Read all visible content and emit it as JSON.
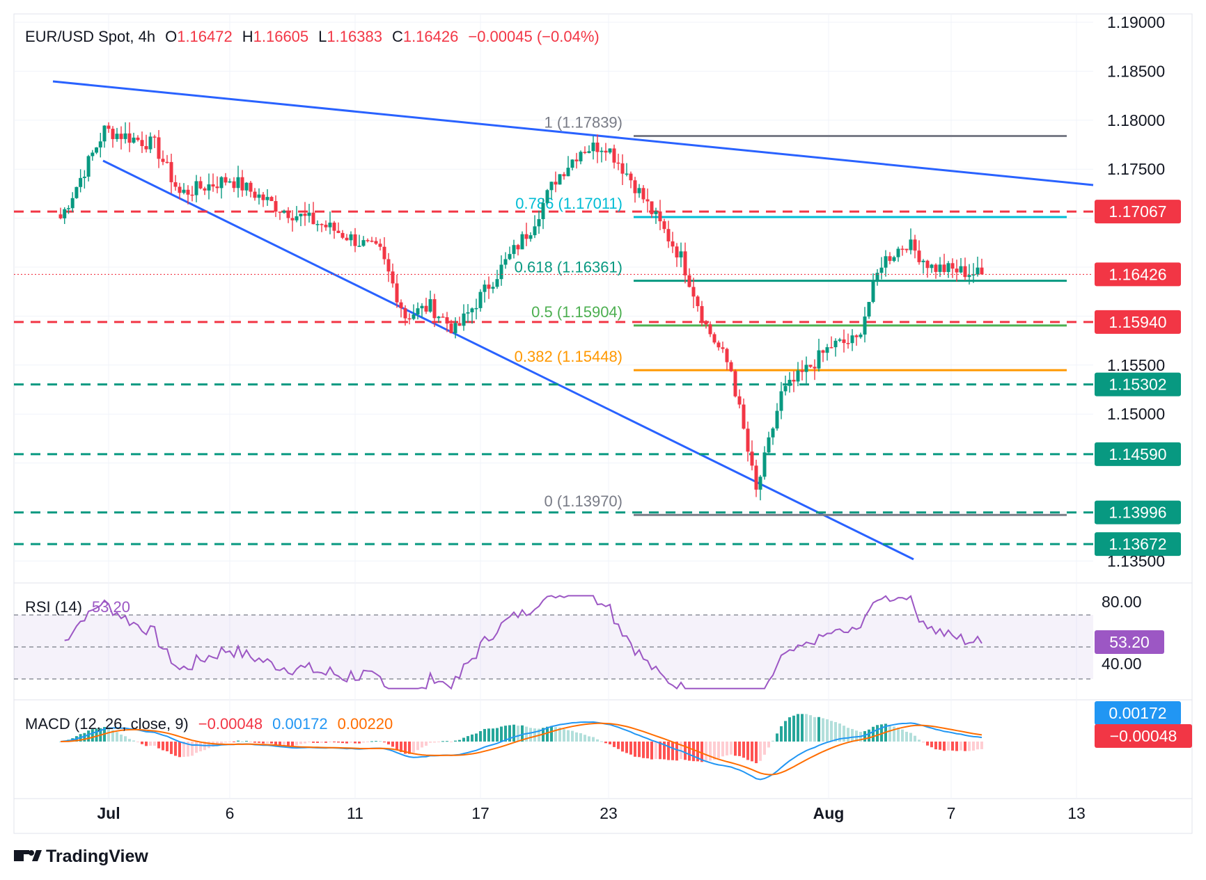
{
  "header": {
    "symbol": "EUR/USD Spot, 4h",
    "o_label": "O",
    "o": "1.16472",
    "h_label": "H",
    "h": "1.16605",
    "l_label": "L",
    "l": "1.16383",
    "c_label": "C",
    "c": "1.16426",
    "change": "−0.00045 (−0.04%)"
  },
  "colors": {
    "up": "#089981",
    "down": "#f23645",
    "trend": "#2962ff",
    "resistance": "#f23645",
    "support": "#089981",
    "rsi": "#9c57c4",
    "macd": "#2196f3",
    "signal": "#ff6d00",
    "fib1": "#787b86",
    "fib786": "#00bcd4",
    "fib618": "#089981",
    "fib5": "#4caf50",
    "fib382": "#ff9800"
  },
  "price_axis": {
    "ticks": [
      "1.19000",
      "1.18500",
      "1.18000",
      "1.17500",
      "1.15500",
      "1.15000",
      "1.13500"
    ],
    "hidden_ticks": [
      "1.17000",
      "1.16500",
      "1.16000",
      "1.14500",
      "1.14000"
    ],
    "ylim": [
      1.133,
      1.191
    ]
  },
  "time_axis": {
    "labels": [
      "Jul",
      "6",
      "11",
      "17",
      "23",
      "Aug",
      "7",
      "13"
    ],
    "bold": [
      "Jul",
      "Aug"
    ]
  },
  "price_badges": [
    {
      "label": "1.17067",
      "kind": "resistance"
    },
    {
      "label": "1.16426",
      "kind": "resistance"
    },
    {
      "label": "1.15940",
      "kind": "resistance"
    },
    {
      "label": "1.15302",
      "kind": "support"
    },
    {
      "label": "1.14590",
      "kind": "support"
    },
    {
      "label": "1.13996",
      "kind": "support"
    },
    {
      "label": "1.13672",
      "kind": "support"
    }
  ],
  "fib_levels": [
    {
      "label": "1 (1.17839)",
      "value": 1.17839,
      "color": "#787b86"
    },
    {
      "label": "0.786 (1.17011)",
      "value": 1.17011,
      "color": "#00bcd4"
    },
    {
      "label": "0.618 (1.16361)",
      "value": 1.16361,
      "color": "#089981"
    },
    {
      "label": "0.5 (1.15904)",
      "value": 1.15904,
      "color": "#4caf50"
    },
    {
      "label": "0.382 (1.15448)",
      "value": 1.15448,
      "color": "#ff9800"
    },
    {
      "label": "0 (1.13970)",
      "value": 1.1397,
      "color": "#787b86"
    }
  ],
  "rsi": {
    "label": "RSI (14)",
    "value": "53.20",
    "badge": "53.20",
    "ticks": [
      "80.00",
      "40.00"
    ],
    "upper": 70,
    "middle": 50,
    "lower": 30,
    "ylim": [
      22,
      90
    ]
  },
  "macd": {
    "label": "MACD (12, 26, close, 9)",
    "hist": "−0.00048",
    "macd_value": "0.00172",
    "signal_value": "0.00220",
    "badge_macd": "0.00172",
    "badge_hist": "−0.00048"
  },
  "branding": {
    "name": "TradingView"
  },
  "chart_data": {
    "type": "candlestick",
    "title": "EUR/USD Spot, 4h",
    "timeframe": "4h",
    "keypoints": [
      {
        "date": "Jun 27",
        "close": 1.17
      },
      {
        "date": "Jul 1",
        "close": 1.179
      },
      {
        "date": "Jul 3",
        "close": 1.1775
      },
      {
        "date": "Jul 4",
        "close": 1.1725
      },
      {
        "date": "Jul 7",
        "close": 1.174
      },
      {
        "date": "Jul 9",
        "close": 1.171
      },
      {
        "date": "Jul 11",
        "close": 1.169
      },
      {
        "date": "Jul 14",
        "close": 1.1665
      },
      {
        "date": "Jul 15",
        "close": 1.16
      },
      {
        "date": "Jul 16",
        "close": 1.161
      },
      {
        "date": "Jul 17",
        "close": 1.1585
      },
      {
        "date": "Jul 18",
        "close": 1.162
      },
      {
        "date": "Jul 21",
        "close": 1.169
      },
      {
        "date": "Jul 22",
        "close": 1.174
      },
      {
        "date": "Jul 23",
        "close": 1.177
      },
      {
        "date": "Jul 24",
        "close": 1.1775
      },
      {
        "date": "Jul 25",
        "close": 1.174
      },
      {
        "date": "Jul 28",
        "close": 1.166
      },
      {
        "date": "Jul 29",
        "close": 1.159
      },
      {
        "date": "Jul 30",
        "close": 1.1545
      },
      {
        "date": "Jul 31",
        "close": 1.142
      },
      {
        "date": "Aug 1",
        "close": 1.152
      },
      {
        "date": "Aug 4",
        "close": 1.157
      },
      {
        "date": "Aug 5",
        "close": 1.1575
      },
      {
        "date": "Aug 6",
        "close": 1.1655
      },
      {
        "date": "Aug 7",
        "close": 1.1675
      },
      {
        "date": "Aug 8",
        "close": 1.165
      },
      {
        "date": "Aug 11",
        "close": 1.16426
      }
    ],
    "levels": {
      "resistance": [
        1.17067,
        1.1594
      ],
      "support": [
        1.15302,
        1.1459,
        1.13996,
        1.13672
      ],
      "last_price": 1.16426
    },
    "ylim": [
      1.133,
      1.191
    ]
  }
}
